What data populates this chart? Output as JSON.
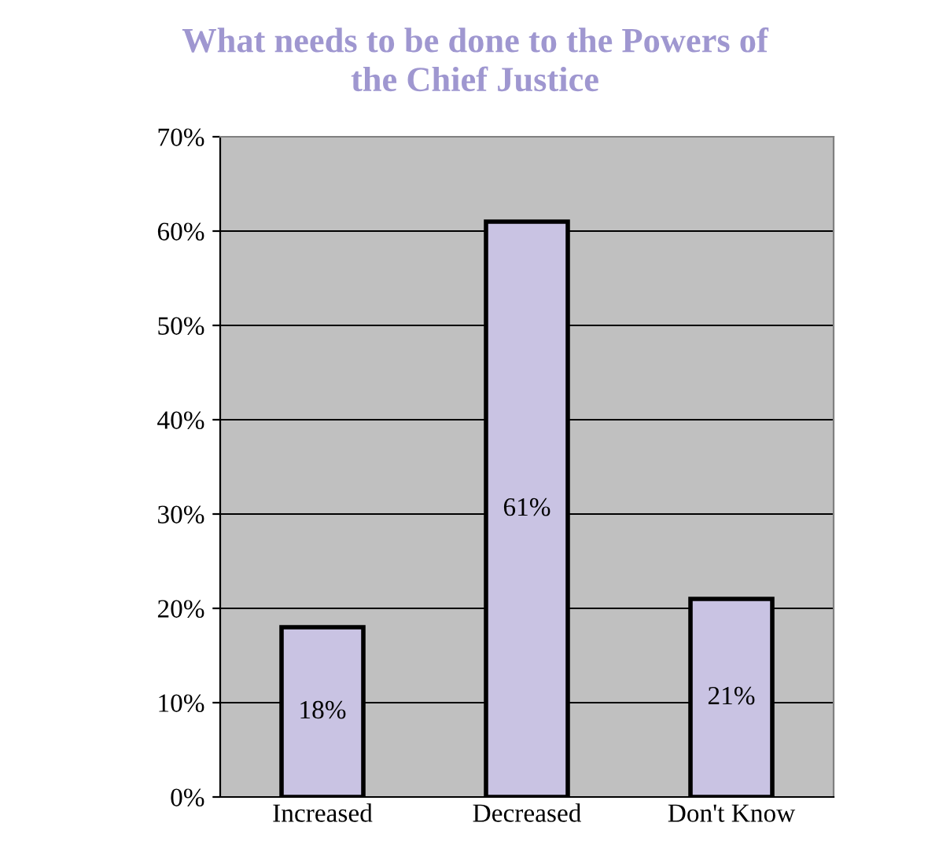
{
  "chart_data": {
    "type": "bar",
    "title": "What needs to be done to the Powers of\nthe Chief Justice",
    "categories": [
      "Increased",
      "Decreased",
      "Don't Know"
    ],
    "values": [
      18,
      61,
      21
    ],
    "value_labels": [
      "18%",
      "61%",
      "21%"
    ],
    "color": "#c9c3e3",
    "ylim": [
      0,
      70
    ],
    "yticks": [
      {
        "value": 0,
        "label": "0%"
      },
      {
        "value": 10,
        "label": "10%"
      },
      {
        "value": 20,
        "label": "20%"
      },
      {
        "value": 30,
        "label": "30%"
      },
      {
        "value": 40,
        "label": "40%"
      },
      {
        "value": 50,
        "label": "50%"
      },
      {
        "value": 60,
        "label": "60%"
      },
      {
        "value": 70,
        "label": "70%"
      }
    ],
    "grid": "y"
  }
}
